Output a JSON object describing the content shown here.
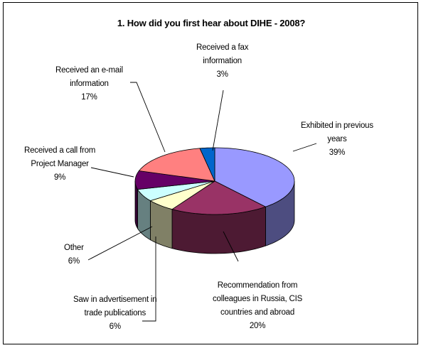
{
  "chart_data": {
    "type": "pie",
    "title": "1. How did you first hear about DIHE - 2008?",
    "slices": [
      {
        "key": "exhibited",
        "lines": [
          "Exhibited in previous",
          "years"
        ],
        "pct_label": "39%",
        "value": 39,
        "color": "#9999ff"
      },
      {
        "key": "recommendation",
        "lines": [
          "Recommendation from",
          "colleagues in Russia, CIS",
          "countries and abroad"
        ],
        "pct_label": "20%",
        "value": 20,
        "color": "#993366"
      },
      {
        "key": "advertisement",
        "lines": [
          "Saw  in advertisement in",
          "trade publications"
        ],
        "pct_label": "6%",
        "value": 6,
        "color": "#ffffcc"
      },
      {
        "key": "other",
        "lines": [
          "Other"
        ],
        "pct_label": "6%",
        "value": 6,
        "color": "#ccffff"
      },
      {
        "key": "call",
        "lines": [
          "Received a call from",
          "Project Manager"
        ],
        "pct_label": "9%",
        "value": 9,
        "color": "#660066"
      },
      {
        "key": "email",
        "lines": [
          "Received an e-mail",
          "information"
        ],
        "pct_label": "17%",
        "value": 17,
        "color": "#ff8080"
      },
      {
        "key": "fax",
        "lines": [
          "Received a fax",
          "information"
        ],
        "pct_label": "3%",
        "value": 3,
        "color": "#0066cc"
      }
    ]
  }
}
